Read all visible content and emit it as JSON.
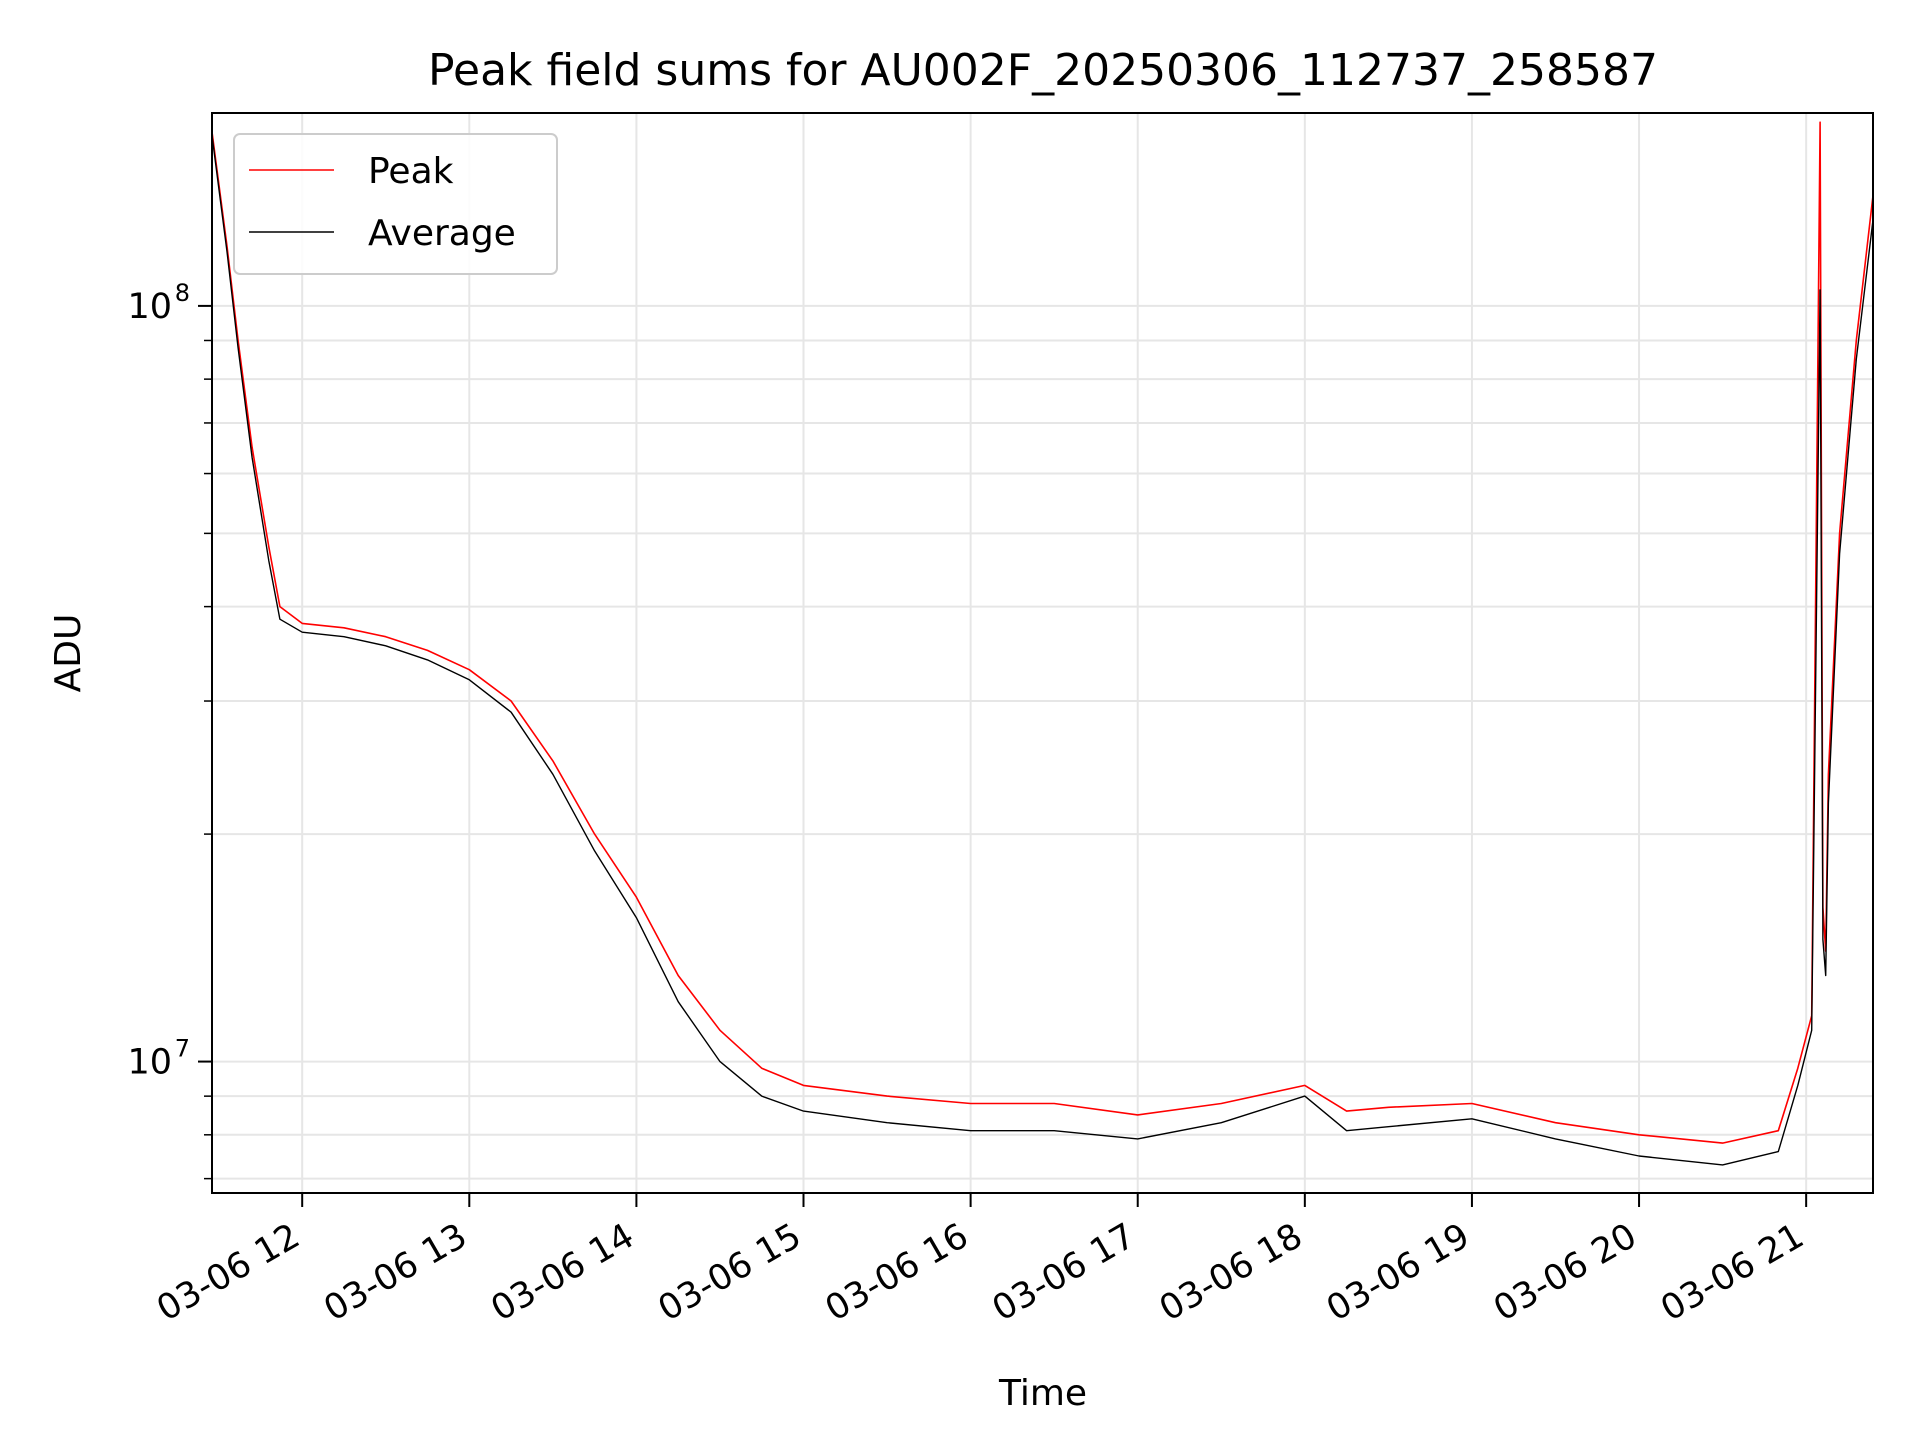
{
  "chart_data": {
    "type": "line",
    "title": "Peak field sums for AU002F_20250306_112737_258587",
    "xlabel": "Time",
    "ylabel": "ADU",
    "yscale": "log",
    "ylim": [
      6700000,
      180000000
    ],
    "xlim": [
      "2025-03-06 11:27:37",
      "2025-03-06 21:24:00"
    ],
    "x_ticks": [
      {
        "value": "2025-03-06 12:00",
        "label": "03-06 12"
      },
      {
        "value": "2025-03-06 13:00",
        "label": "03-06 13"
      },
      {
        "value": "2025-03-06 14:00",
        "label": "03-06 14"
      },
      {
        "value": "2025-03-06 15:00",
        "label": "03-06 15"
      },
      {
        "value": "2025-03-06 16:00",
        "label": "03-06 16"
      },
      {
        "value": "2025-03-06 17:00",
        "label": "03-06 17"
      },
      {
        "value": "2025-03-06 18:00",
        "label": "03-06 18"
      },
      {
        "value": "2025-03-06 19:00",
        "label": "03-06 19"
      },
      {
        "value": "2025-03-06 20:00",
        "label": "03-06 20"
      },
      {
        "value": "2025-03-06 21:00",
        "label": "03-06 21"
      }
    ],
    "y_ticks": [
      {
        "value": 10000000,
        "base": "10",
        "exp": "7"
      },
      {
        "value": 100000000,
        "base": "10",
        "exp": "8"
      }
    ],
    "grid": true,
    "legend_position": "top-left",
    "series": [
      {
        "name": "Peak",
        "color": "#ff0000",
        "x": [
          "2025-03-06 11:27:37",
          "2025-03-06 11:33",
          "2025-03-06 11:37",
          "2025-03-06 11:42",
          "2025-03-06 11:48",
          "2025-03-06 11:52",
          "2025-03-06 12:00",
          "2025-03-06 12:15",
          "2025-03-06 12:30",
          "2025-03-06 12:45",
          "2025-03-06 13:00",
          "2025-03-06 13:15",
          "2025-03-06 13:30",
          "2025-03-06 13:45",
          "2025-03-06 14:00",
          "2025-03-06 14:15",
          "2025-03-06 14:30",
          "2025-03-06 14:45",
          "2025-03-06 15:00",
          "2025-03-06 15:30",
          "2025-03-06 16:00",
          "2025-03-06 16:30",
          "2025-03-06 17:00",
          "2025-03-06 17:30",
          "2025-03-06 18:00",
          "2025-03-06 18:15",
          "2025-03-06 18:30",
          "2025-03-06 19:00",
          "2025-03-06 19:30",
          "2025-03-06 20:00",
          "2025-03-06 20:30",
          "2025-03-06 20:50",
          "2025-03-06 20:57",
          "2025-03-06 21:02",
          "2025-03-06 21:05",
          "2025-03-06 21:06",
          "2025-03-06 21:07",
          "2025-03-06 21:08",
          "2025-03-06 21:12",
          "2025-03-06 21:18",
          "2025-03-06 21:24"
        ],
        "y": [
          170000000,
          120000000,
          90000000,
          65000000,
          48000000,
          40000000,
          38000000,
          37500000,
          36500000,
          35000000,
          33000000,
          30000000,
          25000000,
          20000000,
          16500000,
          13000000,
          11000000,
          9800000,
          9300000,
          9000000,
          8800000,
          8800000,
          8500000,
          8800000,
          9300000,
          8600000,
          8700000,
          8800000,
          8300000,
          8000000,
          7800000,
          8100000,
          9800000,
          11500000,
          175000000,
          16000000,
          14000000,
          24000000,
          50000000,
          90000000,
          140000000
        ]
      },
      {
        "name": "Average",
        "color": "#000000",
        "x": [
          "2025-03-06 11:27:37",
          "2025-03-06 11:33",
          "2025-03-06 11:37",
          "2025-03-06 11:42",
          "2025-03-06 11:48",
          "2025-03-06 11:52",
          "2025-03-06 12:00",
          "2025-03-06 12:15",
          "2025-03-06 12:30",
          "2025-03-06 12:45",
          "2025-03-06 13:00",
          "2025-03-06 13:15",
          "2025-03-06 13:30",
          "2025-03-06 13:45",
          "2025-03-06 14:00",
          "2025-03-06 14:15",
          "2025-03-06 14:30",
          "2025-03-06 14:45",
          "2025-03-06 15:00",
          "2025-03-06 15:30",
          "2025-03-06 16:00",
          "2025-03-06 16:30",
          "2025-03-06 17:00",
          "2025-03-06 17:30",
          "2025-03-06 18:00",
          "2025-03-06 18:15",
          "2025-03-06 18:30",
          "2025-03-06 19:00",
          "2025-03-06 19:30",
          "2025-03-06 20:00",
          "2025-03-06 20:30",
          "2025-03-06 20:50",
          "2025-03-06 20:57",
          "2025-03-06 21:02",
          "2025-03-06 21:05",
          "2025-03-06 21:06",
          "2025-03-06 21:07",
          "2025-03-06 21:08",
          "2025-03-06 21:12",
          "2025-03-06 21:18",
          "2025-03-06 21:24"
        ],
        "y": [
          168000000,
          118000000,
          88000000,
          63000000,
          46000000,
          38500000,
          37000000,
          36500000,
          35500000,
          34000000,
          32000000,
          29000000,
          24000000,
          19000000,
          15500000,
          12000000,
          10000000,
          9000000,
          8600000,
          8300000,
          8100000,
          8100000,
          7900000,
          8300000,
          9000000,
          8100000,
          8200000,
          8400000,
          7900000,
          7500000,
          7300000,
          7600000,
          9300000,
          11000000,
          105000000,
          14500000,
          13000000,
          22000000,
          47000000,
          85000000,
          130000000
        ]
      }
    ]
  }
}
